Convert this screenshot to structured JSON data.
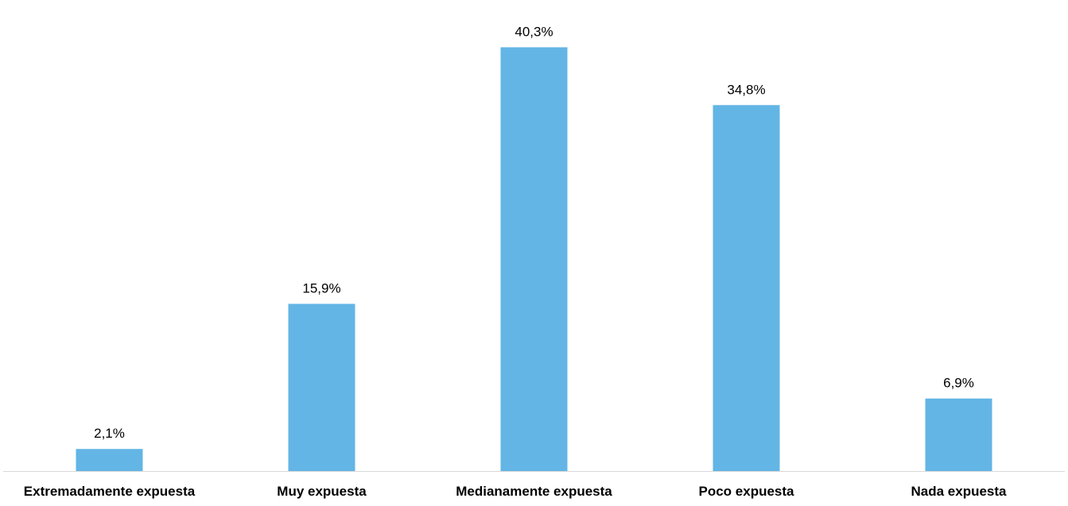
{
  "chart_data": {
    "type": "bar",
    "categories": [
      "Extremadamente expuesta",
      "Muy expuesta",
      "Medianamente expuesta",
      "Poco expuesta",
      "Nada expuesta"
    ],
    "values": [
      2.1,
      15.9,
      40.3,
      34.8,
      6.9
    ],
    "value_labels": [
      "2,1%",
      "15,9%",
      "40,3%",
      "34,8%",
      "6,9%"
    ],
    "ylim": [
      0,
      42
    ],
    "grid": false,
    "legend": "none",
    "colors": {
      "bar": "#63b5e5",
      "axis": "#d9d9d9",
      "text": "#000000"
    }
  }
}
